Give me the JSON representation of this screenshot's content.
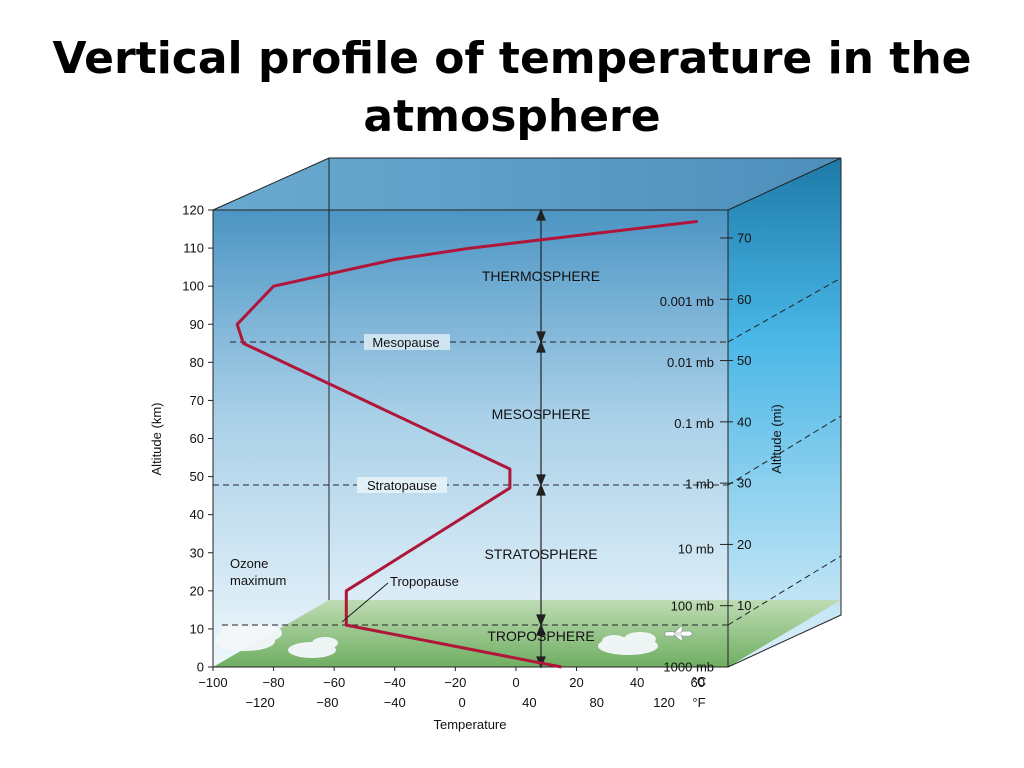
{
  "slide": {
    "title_line1": "Vertical profile of temperature in the",
    "title_line2": "atmosphere"
  },
  "diagram": {
    "left_axis": {
      "label": "Altitude (km)",
      "ticks": [
        "0",
        "10",
        "20",
        "30",
        "40",
        "50",
        "60",
        "70",
        "80",
        "90",
        "100",
        "110",
        "120"
      ]
    },
    "right_axis": {
      "label": "Altitude (mi)",
      "ticks": [
        "10",
        "20",
        "30",
        "40",
        "50",
        "60",
        "70"
      ]
    },
    "pressure_labels": [
      "1000 mb",
      "100 mb",
      "10 mb",
      "1 mb",
      "0.1 mb",
      "0.01 mb",
      "0.001 mb"
    ],
    "bottom_axis": {
      "celsius_ticks": [
        "−100",
        "−80",
        "−60",
        "−40",
        "−20",
        "0",
        "20",
        "40",
        "60"
      ],
      "celsius_unit": "°C",
      "fahrenheit_ticks": [
        "−120",
        "−80",
        "−40",
        "0",
        "40",
        "80",
        "120"
      ],
      "fahrenheit_unit": "°F",
      "label": "Temperature"
    },
    "layers": {
      "thermosphere": "THERMOSPHERE",
      "mesosphere": "MESOSPHERE",
      "stratosphere": "STRATOSPHERE",
      "troposphere": "TROPOSPHERE"
    },
    "boundaries": {
      "mesopause": "Mesopause",
      "stratopause": "Stratopause",
      "tropopause": "Tropopause"
    },
    "ozone_line1": "Ozone",
    "ozone_line2": "maximum",
    "colors": {
      "profile_line": "#b0163a",
      "sky_top": "#3f8fbf",
      "sky_bottom": "#eaf5fb",
      "ground": "#7fba72"
    },
    "temperature_profile": {
      "units": {
        "x": "°C",
        "y": "km"
      },
      "points": [
        {
          "alt": 0,
          "temp": 15
        },
        {
          "alt": 11,
          "temp": -56
        },
        {
          "alt": 20,
          "temp": -56
        },
        {
          "alt": 47,
          "temp": -2
        },
        {
          "alt": 52,
          "temp": -2
        },
        {
          "alt": 85,
          "temp": -90
        },
        {
          "alt": 90,
          "temp": -92
        },
        {
          "alt": 100,
          "temp": -80
        },
        {
          "alt": 107,
          "temp": -40
        },
        {
          "alt": 110,
          "temp": -15
        },
        {
          "alt": 117,
          "temp": 60
        }
      ]
    }
  }
}
